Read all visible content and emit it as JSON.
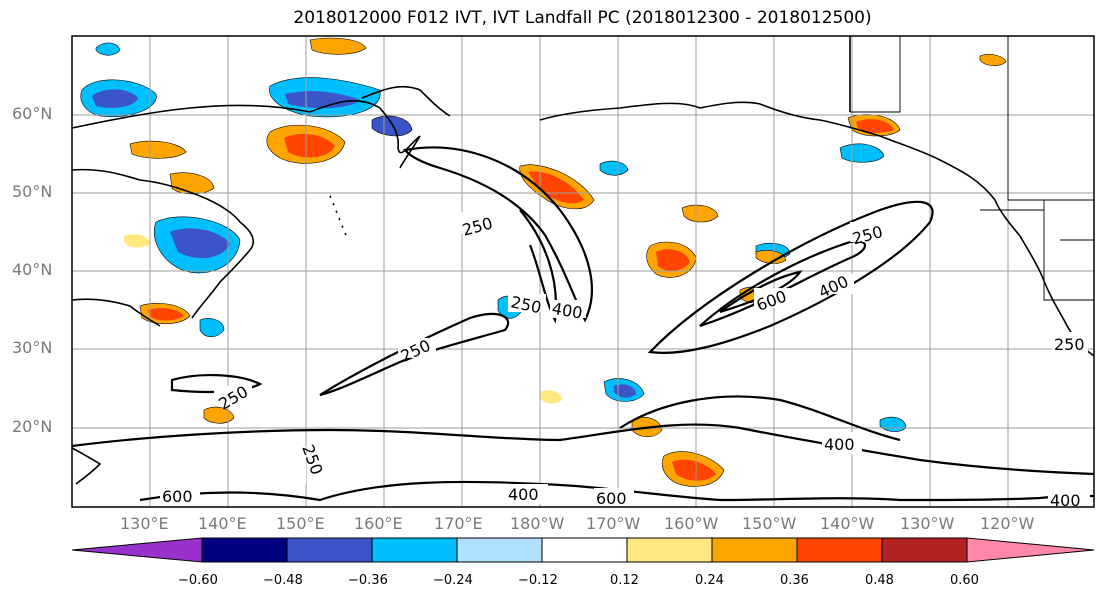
{
  "title": "2018012000 F012 IVT, IVT Landfall PC (2018012300 - 2018012500)",
  "lat_labels": [
    "60°N",
    "50°N",
    "40°N",
    "30°N",
    "20°N"
  ],
  "lon_labels": [
    "130°E",
    "140°E",
    "150°E",
    "160°E",
    "170°E",
    "180°W",
    "170°W",
    "160°W",
    "150°W",
    "140°W",
    "130°W",
    "120°W"
  ],
  "contour_labels": [
    "250",
    "250",
    "400",
    "250",
    "250",
    "250",
    "400",
    "400",
    "600",
    "250",
    "250",
    "400",
    "400",
    "600",
    "600",
    "400"
  ],
  "colorbar": {
    "tick_labels": [
      "−0.60",
      "−0.48",
      "−0.36",
      "−0.24",
      "−0.12",
      "0.12",
      "0.24",
      "0.36",
      "0.48",
      "0.60"
    ],
    "colors": [
      "#9932cc",
      "#000080",
      "#3a55c8",
      "#00bfff",
      "#b0e0ff",
      "#ffffff",
      "#ffe880",
      "#ffa500",
      "#ff4500",
      "#b22222",
      "#ff88aa"
    ]
  },
  "shading_colors": {
    "neg_strong": "#3a55c8",
    "neg_mid": "#00bfff",
    "neg_weak": "#b0e0ff",
    "pos_weak": "#ffe880",
    "pos_mid": "#ffa500",
    "pos_strong": "#ff4500"
  }
}
